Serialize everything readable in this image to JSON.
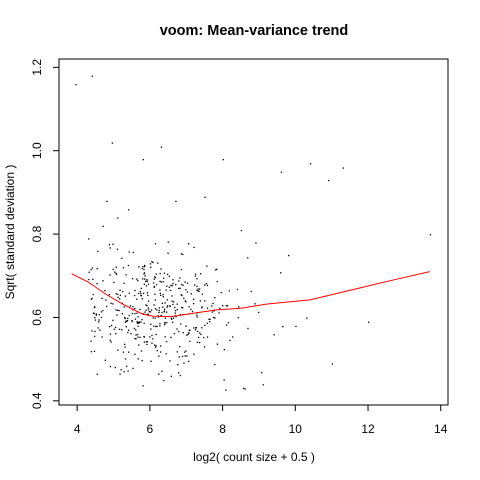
{
  "chart_data": {
    "type": "scatter",
    "title": "voom: Mean-variance trend",
    "xlabel": "log2( count size + 0.5 )",
    "ylabel": "Sqrt( standard deviation )",
    "xlim": [
      3.5,
      14.2
    ],
    "ylim": [
      0.39,
      1.22
    ],
    "xticks": [
      4,
      6,
      8,
      10,
      12,
      14
    ],
    "xtick_labels": [
      "4",
      "6",
      "8",
      "10",
      "12",
      "14"
    ],
    "yticks": [
      0.4,
      0.6,
      0.8,
      1.0,
      1.2
    ],
    "ytick_labels": [
      "0.4",
      "0.6",
      "0.8",
      "1.0",
      "1.2"
    ],
    "grid": false,
    "point_color": "#000000",
    "trend_color": "#ff0000",
    "series": [
      {
        "kind": "points",
        "points": [
          [
            3.95,
            1.16
          ],
          [
            4.4,
            1.18
          ],
          [
            4.95,
            1.02
          ],
          [
            5.8,
            0.98
          ],
          [
            6.3,
            1.01
          ],
          [
            8.0,
            0.98
          ],
          [
            9.6,
            0.95
          ],
          [
            10.4,
            0.97
          ],
          [
            11.3,
            0.96
          ],
          [
            10.9,
            0.93
          ],
          [
            13.7,
            0.8
          ],
          [
            12.0,
            0.59
          ],
          [
            11.0,
            0.49
          ],
          [
            9.4,
            0.56
          ],
          [
            9.1,
            0.44
          ],
          [
            8.6,
            0.43
          ],
          [
            10.0,
            0.58
          ],
          [
            10.3,
            0.6
          ],
          [
            9.8,
            0.75
          ],
          [
            8.9,
            0.78
          ],
          [
            8.5,
            0.81
          ],
          [
            7.5,
            0.89
          ],
          [
            6.7,
            0.88
          ],
          [
            5.4,
            0.86
          ],
          [
            4.8,
            0.88
          ],
          [
            4.3,
            0.79
          ],
          [
            4.55,
            0.76
          ],
          [
            4.7,
            0.82
          ],
          [
            5.1,
            0.84
          ]
        ],
        "cloud_count": 460,
        "cloud_center": [
          6.2,
          0.62
        ],
        "cloud_spread": [
          1.05,
          0.07
        ]
      },
      {
        "kind": "trend",
        "points": [
          [
            3.85,
            0.705
          ],
          [
            4.3,
            0.685
          ],
          [
            4.8,
            0.655
          ],
          [
            5.3,
            0.63
          ],
          [
            5.8,
            0.608
          ],
          [
            6.1,
            0.603
          ],
          [
            6.6,
            0.602
          ],
          [
            7.2,
            0.61
          ],
          [
            7.8,
            0.618
          ],
          [
            8.5,
            0.622
          ],
          [
            9.2,
            0.632
          ],
          [
            10.4,
            0.642
          ],
          [
            11.5,
            0.665
          ],
          [
            12.6,
            0.688
          ],
          [
            13.7,
            0.71
          ]
        ]
      }
    ]
  }
}
